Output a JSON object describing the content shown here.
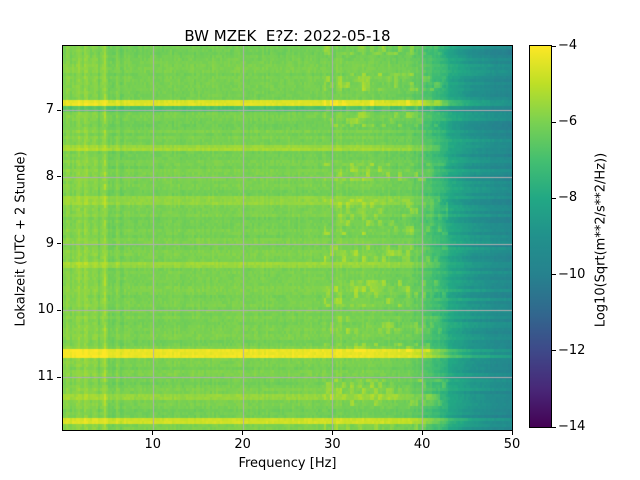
{
  "chart_data": {
    "type": "heatmap",
    "title": "BW MZEK  E?Z: 2022-05-18",
    "xlabel": "Frequency [Hz]",
    "ylabel": "Lokalzeit (UTC + 2 Stunde)",
    "xlim": [
      0,
      50
    ],
    "ylim_hours": [
      6.04,
      11.79
    ],
    "y_axis_time_increases_downward": true,
    "xticks": [
      10,
      20,
      30,
      40,
      50
    ],
    "yticks": [
      7,
      8,
      9,
      10,
      11
    ],
    "grid": true,
    "grid_color": "#b0b0b0",
    "colormap": "viridis",
    "colormap_stops": [
      [
        "#440154",
        0.0
      ],
      [
        "#482878",
        0.1
      ],
      [
        "#3e4989",
        0.2
      ],
      [
        "#31688e",
        0.3
      ],
      [
        "#26828e",
        0.4
      ],
      [
        "#21918c",
        0.5
      ],
      [
        "#22a884",
        0.6
      ],
      [
        "#44bf70",
        0.7
      ],
      [
        "#7ad151",
        0.8
      ],
      [
        "#bddf26",
        0.9
      ],
      [
        "#fde725",
        1.0
      ]
    ],
    "colorbar": {
      "label": "Log10(Sqrt(m**2/s**2/Hz))",
      "vmin": -14,
      "vmax": -4,
      "ticks": [
        -4,
        -6,
        -8,
        -10,
        -12,
        -14
      ]
    },
    "field": {
      "description": "Seismic PPSD spectrogram: broad green background near -6, teal roll-off above ~42 Hz reaching ~-9.5 at 50 Hz, yellow blotches in 30-43 Hz band, persistent narrow line near 4.8 Hz, bright horizontal streaks at listed local times",
      "base_level": -6.05,
      "low_freq_bright_center_hz": 2.5,
      "low_freq_bright_amp": 0.25,
      "persistent_line_hz": 4.8,
      "blotch_band_hz": [
        29,
        43
      ],
      "rolloff_center_hz": 42.5,
      "rolloff_depth": -3.1,
      "edge_extra_drop": -0.5,
      "bright_rows": [
        {
          "time": 6.91,
          "amp": 1.6,
          "fmax": 50
        },
        {
          "time": 6.99,
          "amp": -0.7,
          "fmax": 50
        },
        {
          "time": 7.55,
          "amp": 0.6,
          "fmax": 42
        },
        {
          "time": 8.35,
          "amp": 0.5,
          "fmax": 42
        },
        {
          "time": 9.33,
          "amp": 0.5,
          "fmax": 42
        },
        {
          "time": 10.64,
          "amp": 1.8,
          "fmax": 50
        },
        {
          "time": 11.3,
          "amp": 0.5,
          "fmax": 42
        },
        {
          "time": 11.64,
          "amp": 1.4,
          "fmax": 50
        }
      ],
      "seed": 42
    }
  }
}
